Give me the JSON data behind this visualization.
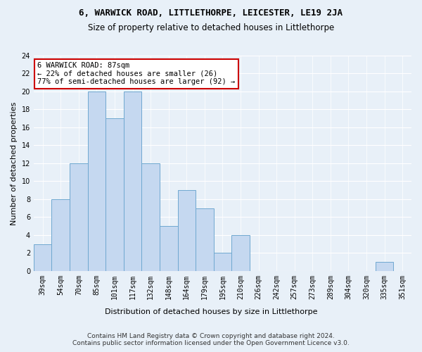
{
  "title": "6, WARWICK ROAD, LITTLETHORPE, LEICESTER, LE19 2JA",
  "subtitle": "Size of property relative to detached houses in Littlethorpe",
  "xlabel": "Distribution of detached houses by size in Littlethorpe",
  "ylabel": "Number of detached properties",
  "bin_labels": [
    "39sqm",
    "54sqm",
    "70sqm",
    "85sqm",
    "101sqm",
    "117sqm",
    "132sqm",
    "148sqm",
    "164sqm",
    "179sqm",
    "195sqm",
    "210sqm",
    "226sqm",
    "242sqm",
    "257sqm",
    "273sqm",
    "289sqm",
    "304sqm",
    "320sqm",
    "335sqm",
    "351sqm"
  ],
  "bar_heights": [
    3,
    8,
    12,
    20,
    17,
    20,
    12,
    5,
    9,
    7,
    2,
    4,
    0,
    0,
    0,
    0,
    0,
    0,
    0,
    1,
    0
  ],
  "bar_color": "#c5d8f0",
  "bar_edge_color": "#6fa8d0",
  "background_color": "#e8f0f8",
  "grid_color": "#ffffff",
  "annotation_box_color": "#ffffff",
  "annotation_border_color": "#cc0000",
  "annotation_line1": "6 WARWICK ROAD: 87sqm",
  "annotation_line2": "← 22% of detached houses are smaller (26)",
  "annotation_line3": "77% of semi-detached houses are larger (92) →",
  "ylim": [
    0,
    24
  ],
  "yticks": [
    0,
    2,
    4,
    6,
    8,
    10,
    12,
    14,
    16,
    18,
    20,
    22,
    24
  ],
  "footer_line1": "Contains HM Land Registry data © Crown copyright and database right 2024.",
  "footer_line2": "Contains public sector information licensed under the Open Government Licence v3.0.",
  "title_fontsize": 9,
  "subtitle_fontsize": 8.5,
  "xlabel_fontsize": 8,
  "ylabel_fontsize": 8,
  "annotation_fontsize": 7.5,
  "footer_fontsize": 6.5,
  "tick_fontsize": 7
}
